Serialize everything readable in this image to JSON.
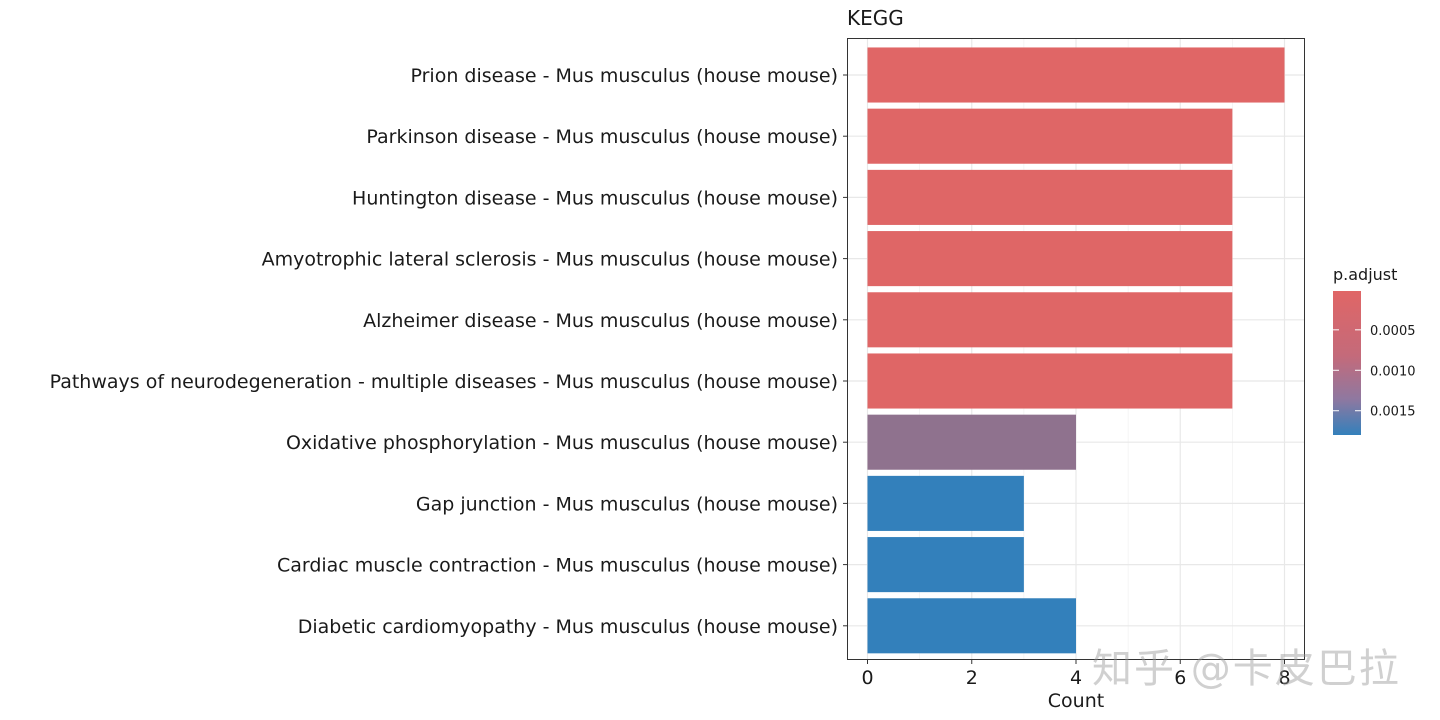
{
  "chart_data": {
    "type": "bar",
    "orientation": "horizontal",
    "title": "KEGG",
    "xlabel": "Count",
    "ylabel": "",
    "xlim": [
      0,
      8
    ],
    "x_ticks": [
      "0",
      "2",
      "4",
      "6",
      "8"
    ],
    "categories": [
      "Prion disease - Mus musculus (house mouse)",
      "Parkinson disease - Mus musculus (house mouse)",
      "Huntington disease - Mus musculus (house mouse)",
      "Amyotrophic lateral sclerosis - Mus musculus (house mouse)",
      "Alzheimer disease - Mus musculus (house mouse)",
      "Pathways of neurodegeneration - multiple diseases - Mus musculus (house mouse)",
      "Oxidative phosphorylation - Mus musculus (house mouse)",
      "Gap junction - Mus musculus (house mouse)",
      "Cardiac muscle contraction - Mus musculus (house mouse)",
      "Diabetic cardiomyopathy - Mus musculus (house mouse)"
    ],
    "values": [
      8,
      7,
      7,
      7,
      7,
      7,
      4,
      3,
      3,
      4
    ],
    "p_adjust": [
      2e-05,
      3e-05,
      3e-05,
      3e-05,
      3e-05,
      3e-05,
      0.00085,
      0.0018,
      0.0018,
      0.0018
    ],
    "legend": {
      "title": "p.adjust",
      "placement": "right",
      "ticks": [
        "0.0005",
        "0.0010",
        "0.0015"
      ],
      "tick_values": [
        0.0005,
        0.001,
        0.0015
      ],
      "range": [
        2e-05,
        0.0018
      ],
      "color_low": "#e06666",
      "color_high": "#3380bb"
    },
    "grid": true
  },
  "watermark": "知乎 @卡皮巴拉"
}
